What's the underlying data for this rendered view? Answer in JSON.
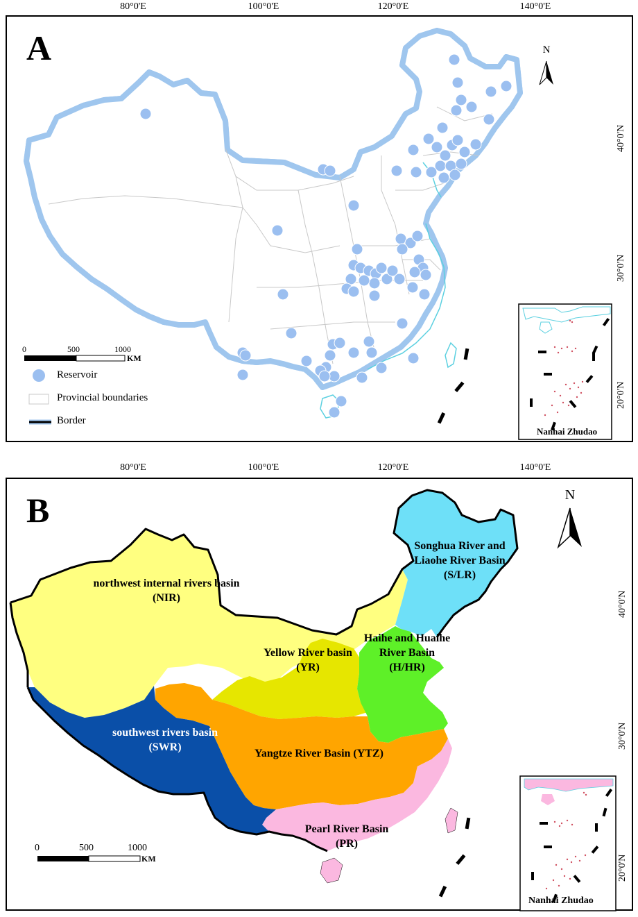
{
  "longitude_labels": [
    "80°0'E",
    "100°0'E",
    "120°0'E",
    "140°0'E"
  ],
  "latitude_labels": [
    "40°0'N",
    "30°0'N",
    "20°0'N"
  ],
  "panel_a": {
    "letter": "A",
    "north_label": "N",
    "scale": {
      "ticks": [
        "0",
        "500",
        "1000"
      ],
      "unit": "KM"
    },
    "legend": {
      "reservoir": "Reservoir",
      "provincial": "Provincial boundaries",
      "border": "Border"
    },
    "inset_title": "Nanhai Zhudao",
    "colors": {
      "reservoir": "#9bbff0",
      "border": "#000000",
      "halo": "#9fc6ee",
      "province": "#c8c8c8",
      "coast": "#5bd0e0"
    }
  },
  "panel_b": {
    "letter": "B",
    "north_label": "N",
    "scale": {
      "ticks": [
        "0",
        "500",
        "1000"
      ],
      "unit": "KM"
    },
    "inset_title": "Nanhai Zhudao",
    "basins": [
      {
        "lines": [
          "northwest internal rivers basin",
          "(NIR)"
        ],
        "color": "#ffff80",
        "text_color": "#000000"
      },
      {
        "lines": [
          "Songhua River and",
          "Liaohe River Basin",
          "(S/LR)"
        ],
        "color": "#6ee0f8",
        "text_color": "#000000"
      },
      {
        "lines": [
          "Yellow River basin",
          "(YR)"
        ],
        "color": "#e6e600",
        "text_color": "#000000"
      },
      {
        "lines": [
          "Haihe and Huaihe",
          "River Basin",
          "(H/HR)"
        ],
        "color": "#5ef028",
        "text_color": "#000000"
      },
      {
        "lines": [
          "southwest rivers basin",
          "(SWR)"
        ],
        "color": "#0a4fa8",
        "text_color": "#ffffff"
      },
      {
        "lines": [
          "Yangtze River Basin (YTZ)"
        ],
        "color": "#ffa500",
        "text_color": "#000000"
      },
      {
        "lines": [
          "Pearl River Basin",
          "(PR)"
        ],
        "color": "#fbb8e0",
        "text_color": "#000000"
      }
    ]
  }
}
